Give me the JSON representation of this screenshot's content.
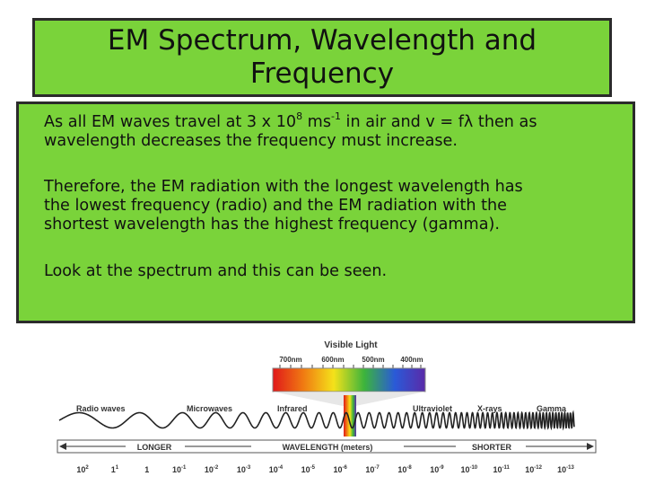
{
  "slide": {
    "title_lines": [
      "EM Spectrum, Wavelength and",
      "Frequency"
    ],
    "paragraph1": {
      "line1_a": "As all EM waves travel at 3 x 10",
      "line1_sup1": "8",
      "line1_b": " ms",
      "line1_sup2": "-1",
      "line1_c": " in air and v = fλ then as",
      "line2": "wavelength decreases the frequency must increase."
    },
    "paragraph2": [
      "Therefore, the EM radiation with the longest wavelength has",
      "the lowest frequency  (radio) and the EM radiation with the",
      "shortest wavelength has the highest frequency (gamma)."
    ],
    "paragraph3": "Look at the spectrum and this can be seen."
  },
  "diagram": {
    "visible_light_label": "Visible Light",
    "visible_ticks": [
      "700nm",
      "600nm",
      "500nm",
      "400nm"
    ],
    "spectrum_colors": [
      "#e0181a",
      "#f07a12",
      "#f4e21a",
      "#3cb43c",
      "#2a5ad8",
      "#5a2aa8"
    ],
    "regions": [
      "Radio waves",
      "Microwaves",
      "Infrared",
      "Ultraviolet",
      "X-rays",
      "Gamma"
    ],
    "scale_labels": {
      "left": "LONGER",
      "center": "WAVELENGTH (meters)",
      "right": "SHORTER"
    },
    "exponent_ticks": [
      {
        "base": "10",
        "exp": "2"
      },
      {
        "base": "1",
        "exp": "1"
      },
      {
        "base": "1",
        "exp": ""
      },
      {
        "base": "10",
        "exp": "-1"
      },
      {
        "base": "10",
        "exp": "-2"
      },
      {
        "base": "10",
        "exp": "-3"
      },
      {
        "base": "10",
        "exp": "-4"
      },
      {
        "base": "10",
        "exp": "-5"
      },
      {
        "base": "10",
        "exp": "-6"
      },
      {
        "base": "10",
        "exp": "-7"
      },
      {
        "base": "10",
        "exp": "-8"
      },
      {
        "base": "10",
        "exp": "-9"
      },
      {
        "base": "10",
        "exp": "-10"
      },
      {
        "base": "10",
        "exp": "-11"
      },
      {
        "base": "10",
        "exp": "-12"
      },
      {
        "base": "10",
        "exp": "-13"
      }
    ]
  }
}
